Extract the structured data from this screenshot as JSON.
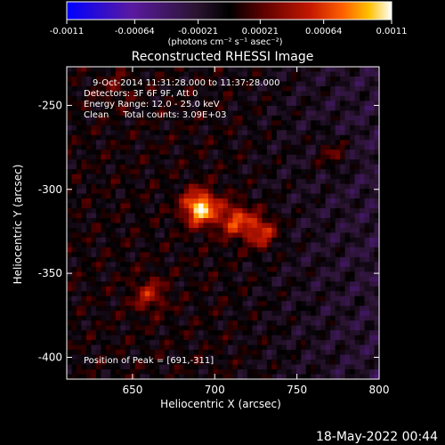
{
  "chart_data": {
    "type": "heatmap",
    "title": "Reconstructed RHESSI Image",
    "xlabel": "Heliocentric X (arcsec)",
    "ylabel": "Heliocentric Y (arcsec)",
    "xlim": [
      610,
      800
    ],
    "ylim": [
      -413,
      -227
    ],
    "x_ticks": [
      "650",
      "700",
      "750",
      "800"
    ],
    "x_tick_values": [
      650,
      700,
      750,
      800
    ],
    "y_ticks": [
      "-250",
      "-300",
      "-350",
      "-400"
    ],
    "y_tick_values": [
      -250,
      -300,
      -350,
      -400
    ],
    "colorbar": {
      "ticks": [
        "-0.0011",
        "-0.00064",
        "-0.00021",
        "0.00021",
        "0.00064",
        "0.0011"
      ],
      "tick_values": [
        -0.0011,
        -0.00064,
        -0.00021,
        0.00021,
        0.00064,
        0.0011
      ],
      "range": [
        -0.0011,
        0.0011
      ],
      "units": "(photons cm⁻² s⁻¹ asec⁻²)",
      "colors": [
        "#0000ff",
        "#5a1aa0",
        "#3a1a3a",
        "#000000",
        "#5a0000",
        "#b81400",
        "#ff5000",
        "#ffb000",
        "#ffff60",
        "#ffffff"
      ]
    },
    "annotations": [
      "9-Oct-2014 11:31:28.000 to 11:37:28.000",
      "Detectors: 3F 6F 9F, Att 0",
      "Energy Range: 12.0 - 25.0 keV",
      "Clean     Total counts: 3.09E+03",
      "Position of Peak = [691,-311]"
    ],
    "peak": {
      "x": 691,
      "y": -311
    },
    "sources": [
      {
        "x": 691,
        "y": -311,
        "value": 0.0011
      },
      {
        "x": 712,
        "y": -318,
        "value": 0.00064
      },
      {
        "x": 728,
        "y": -325,
        "value": 0.00064
      },
      {
        "x": 660,
        "y": -363,
        "value": 0.00044
      },
      {
        "x": 772,
        "y": -279,
        "value": 0.00032
      },
      {
        "x": 640,
        "y": -240,
        "value": 0.0002
      }
    ]
  },
  "footer": {
    "timestamp": "18-May-2022 00:44"
  }
}
